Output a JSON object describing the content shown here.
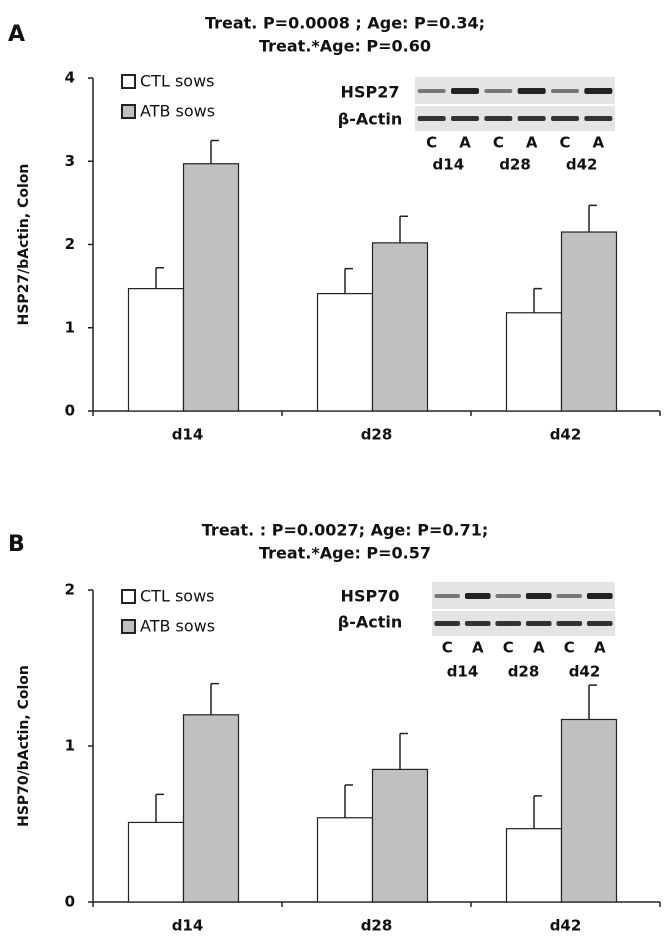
{
  "chart_data": [
    {
      "type": "bar",
      "panel_label": "A",
      "title": [
        "Treat.  P=0.0008 ; Age: P=0.34;",
        "Treat.*Age: P=0.60"
      ],
      "y_label": "HSP27/bActin, Colon",
      "categories": [
        "d14",
        "d28",
        "d42"
      ],
      "series": [
        {
          "name": "CTL sows",
          "color": "#ffffff",
          "values": [
            1.47,
            1.41,
            1.18
          ],
          "errors": [
            0.25,
            0.3,
            0.29
          ]
        },
        {
          "name": "ATB sows",
          "color": "#c0c0c0",
          "values": [
            2.97,
            2.02,
            2.15
          ],
          "errors": [
            0.28,
            0.32,
            0.32
          ]
        }
      ],
      "ylim": [
        0,
        4
      ],
      "yticks": [
        0,
        1,
        2,
        3,
        4
      ],
      "inset": {
        "protein": "HSP27",
        "control": "β-Actin",
        "lanes": [
          "C",
          "A",
          "C",
          "A",
          "C",
          "A"
        ],
        "days": [
          "d14",
          "d28",
          "d42"
        ]
      }
    },
    {
      "type": "bar",
      "panel_label": "B",
      "title": [
        "Treat. : P=0.0027; Age: P=0.71;",
        "Treat.*Age: P=0.57"
      ],
      "y_label": "HSP70/bActin, Colon",
      "categories": [
        "d14",
        "d28",
        "d42"
      ],
      "series": [
        {
          "name": "CTL sows",
          "color": "#ffffff",
          "values": [
            0.51,
            0.54,
            0.47
          ],
          "errors": [
            0.18,
            0.21,
            0.21
          ]
        },
        {
          "name": "ATB sows",
          "color": "#c0c0c0",
          "values": [
            1.2,
            0.85,
            1.17
          ],
          "errors": [
            0.2,
            0.23,
            0.22
          ]
        }
      ],
      "ylim": [
        0,
        2
      ],
      "yticks": [
        0,
        1,
        2
      ],
      "inset": {
        "protein": "HSP70",
        "control": "β-Actin",
        "lanes": [
          "C",
          "A",
          "C",
          "A",
          "C",
          "A"
        ],
        "days": [
          "d14",
          "d28",
          "d42"
        ]
      }
    }
  ]
}
